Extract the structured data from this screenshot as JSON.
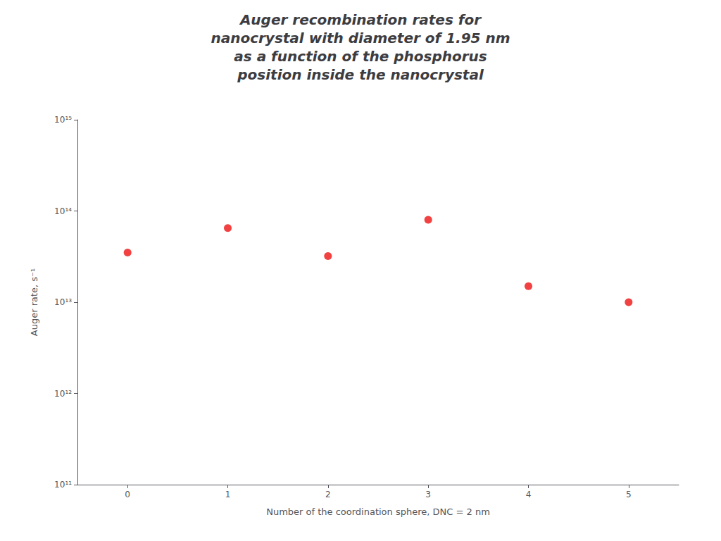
{
  "chart_data": {
    "type": "scatter",
    "title": "Auger recombination rates for\nnanocrystal with diameter of 1.95 nm\nas a function of the phosphorus\nposition inside the nanocrystal",
    "xlabel": "Number of the coordination sphere, DNC = 2 nm",
    "ylabel": "Auger rate, s⁻¹",
    "x": [
      0,
      1,
      2,
      3,
      4,
      5
    ],
    "values": [
      35000000000000.0,
      65000000000000.0,
      32000000000000.0,
      80000000000000.0,
      15000000000000.0,
      10000000000000.0
    ],
    "color": "#ee1111",
    "marker": "circle",
    "xlim": [
      -0.5,
      5.5
    ],
    "ylim": [
      100000000000,
      1000000000000000
    ],
    "xticks": [
      0,
      1,
      2,
      3,
      4,
      5
    ],
    "yticks": [
      {
        "value": 100000000000,
        "label": "10¹¹"
      },
      {
        "value": 1000000000000,
        "label": "10¹²"
      },
      {
        "value": 10000000000000,
        "label": "10¹³"
      },
      {
        "value": 100000000000000,
        "label": "10¹⁴"
      },
      {
        "value": 1000000000000000,
        "label": "10¹⁵"
      }
    ],
    "log": "y",
    "grid": false
  }
}
